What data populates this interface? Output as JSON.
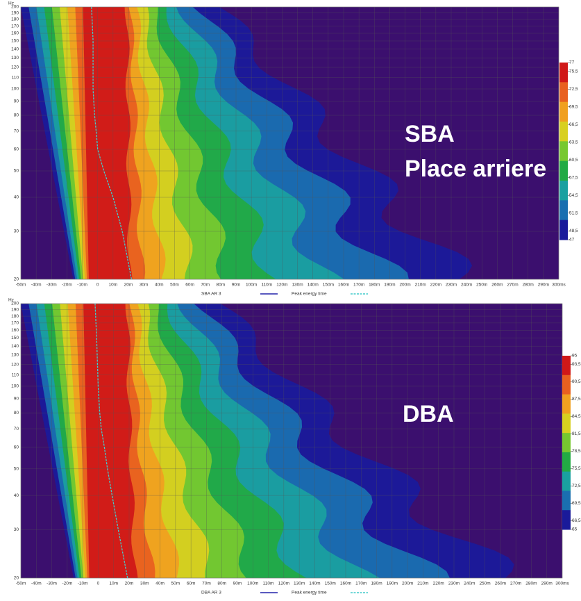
{
  "chart_data": [
    {
      "type": "spectrogram",
      "y_label": "Hz",
      "annotation": [
        "SBA",
        "Place arriere"
      ],
      "xlim": [
        -50,
        300
      ],
      "xticks": [
        {
          "value": -50,
          "label": "-50m"
        },
        {
          "value": -40,
          "label": "-40m"
        },
        {
          "value": -30,
          "label": "-30m"
        },
        {
          "value": -20,
          "label": "-20m"
        },
        {
          "value": -10,
          "label": "-10m"
        },
        0,
        {
          "value": 10,
          "label": "10m"
        },
        {
          "value": 20,
          "label": "20m"
        },
        {
          "value": 30,
          "label": "30m"
        },
        {
          "value": 40,
          "label": "40m"
        },
        {
          "value": 50,
          "label": "50m"
        },
        {
          "value": 60,
          "label": "60m"
        },
        {
          "value": 70,
          "label": "70m"
        },
        {
          "value": 80,
          "label": "80m"
        },
        {
          "value": 90,
          "label": "90m"
        },
        {
          "value": 100,
          "label": "100m"
        },
        {
          "value": 110,
          "label": "110m"
        },
        {
          "value": 120,
          "label": "120m"
        },
        {
          "value": 130,
          "label": "130m"
        },
        {
          "value": 140,
          "label": "140m"
        },
        {
          "value": 150,
          "label": "150m"
        },
        {
          "value": 160,
          "label": "160m"
        },
        {
          "value": 170,
          "label": "170m"
        },
        {
          "value": 180,
          "label": "180m"
        },
        {
          "value": 190,
          "label": "190m"
        },
        {
          "value": 200,
          "label": "200m"
        },
        {
          "value": 210,
          "label": "210m"
        },
        {
          "value": 220,
          "label": "220m"
        },
        {
          "value": 230,
          "label": "230m"
        },
        {
          "value": 240,
          "label": "240m"
        },
        {
          "value": 250,
          "label": "250m"
        },
        {
          "value": 260,
          "label": "260m"
        },
        {
          "value": 270,
          "label": "270m"
        },
        {
          "value": 280,
          "label": "280m"
        },
        {
          "value": 290,
          "label": "290m"
        },
        {
          "value": 300,
          "label": "300ms"
        }
      ],
      "ylim": [
        20,
        200
      ],
      "log_y": true,
      "yticks": [
        20,
        30,
        40,
        50,
        60,
        70,
        80,
        90,
        100,
        110,
        120,
        130,
        140,
        150,
        160,
        170,
        180,
        190,
        200
      ],
      "clim": [
        47,
        77
      ],
      "cticks": [
        77,
        {
          "value": 75.5,
          "label": "75,5"
        },
        {
          "value": 72.5,
          "label": "72,5"
        },
        {
          "value": 69.5,
          "label": "69,5"
        },
        {
          "value": 66.5,
          "label": "66,5"
        },
        {
          "value": 63.5,
          "label": "63,5"
        },
        {
          "value": 60.5,
          "label": "60,5"
        },
        {
          "value": 57.5,
          "label": "57,5"
        },
        {
          "value": 54.5,
          "label": "54,5"
        },
        {
          "value": 51.5,
          "label": "51,5"
        },
        {
          "value": 48.5,
          "label": "48,5"
        },
        47
      ],
      "series": [
        {
          "name": "SBA AR 3",
          "color": "#2222aa"
        },
        {
          "name": "Peak energy time",
          "color": "#44cccc",
          "x": [
            22,
            16,
            10,
            4,
            0,
            -1,
            -2,
            -3,
            -3,
            -4
          ],
          "values": [
            20,
            30,
            40,
            50,
            60,
            70,
            80,
            100,
            150,
            200
          ]
        }
      ]
    },
    {
      "type": "spectrogram",
      "y_label": "Hz",
      "annotation": [
        "DBA"
      ],
      "xlim": [
        -50,
        300
      ],
      "xticks": [
        {
          "value": -50,
          "label": "-50m"
        },
        {
          "value": -40,
          "label": "-40m"
        },
        {
          "value": -30,
          "label": "-30m"
        },
        {
          "value": -20,
          "label": "-20m"
        },
        {
          "value": -10,
          "label": "-10m"
        },
        0,
        {
          "value": 10,
          "label": "10m"
        },
        {
          "value": 20,
          "label": "20m"
        },
        {
          "value": 30,
          "label": "30m"
        },
        {
          "value": 40,
          "label": "40m"
        },
        {
          "value": 50,
          "label": "50m"
        },
        {
          "value": 60,
          "label": "60m"
        },
        {
          "value": 70,
          "label": "70m"
        },
        {
          "value": 80,
          "label": "80m"
        },
        {
          "value": 90,
          "label": "90m"
        },
        {
          "value": 100,
          "label": "100m"
        },
        {
          "value": 110,
          "label": "110m"
        },
        {
          "value": 120,
          "label": "120m"
        },
        {
          "value": 130,
          "label": "130m"
        },
        {
          "value": 140,
          "label": "140m"
        },
        {
          "value": 150,
          "label": "150m"
        },
        {
          "value": 160,
          "label": "160m"
        },
        {
          "value": 170,
          "label": "170m"
        },
        {
          "value": 180,
          "label": "180m"
        },
        {
          "value": 190,
          "label": "190m"
        },
        {
          "value": 200,
          "label": "200m"
        },
        {
          "value": 210,
          "label": "210m"
        },
        {
          "value": 220,
          "label": "220m"
        },
        {
          "value": 230,
          "label": "230m"
        },
        {
          "value": 240,
          "label": "240m"
        },
        {
          "value": 250,
          "label": "250m"
        },
        {
          "value": 260,
          "label": "260m"
        },
        {
          "value": 270,
          "label": "270m"
        },
        {
          "value": 280,
          "label": "280m"
        },
        {
          "value": 290,
          "label": "290m"
        },
        {
          "value": 300,
          "label": "300ms"
        }
      ],
      "ylim": [
        20,
        200
      ],
      "log_y": true,
      "yticks": [
        20,
        30,
        40,
        50,
        60,
        70,
        80,
        90,
        100,
        110,
        120,
        130,
        140,
        150,
        160,
        170,
        180,
        190,
        200
      ],
      "clim": [
        65,
        95
      ],
      "cticks": [
        95,
        {
          "value": 93.5,
          "label": "93,5"
        },
        {
          "value": 90.5,
          "label": "90,5"
        },
        {
          "value": 87.5,
          "label": "87,5"
        },
        {
          "value": 84.5,
          "label": "84,5"
        },
        {
          "value": 81.5,
          "label": "81,5"
        },
        {
          "value": 78.5,
          "label": "78,5"
        },
        {
          "value": 75.5,
          "label": "75,5"
        },
        {
          "value": 72.5,
          "label": "72,5"
        },
        {
          "value": 69.5,
          "label": "69,5"
        },
        {
          "value": 66.5,
          "label": "66,5"
        },
        65
      ],
      "series": [
        {
          "name": "DBA AR 3",
          "color": "#2222aa"
        },
        {
          "name": "Peak energy time",
          "color": "#44cccc",
          "x": [
            19,
            13,
            9,
            6,
            4,
            2,
            1,
            0,
            -1,
            -2
          ],
          "values": [
            20,
            30,
            40,
            50,
            60,
            70,
            80,
            100,
            150,
            200
          ]
        }
      ]
    }
  ]
}
